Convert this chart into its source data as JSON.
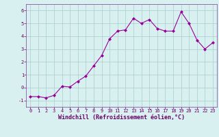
{
  "x": [
    0,
    1,
    2,
    3,
    4,
    5,
    6,
    7,
    8,
    9,
    10,
    11,
    12,
    13,
    14,
    15,
    16,
    17,
    18,
    19,
    20,
    21,
    22,
    23
  ],
  "y": [
    -0.7,
    -0.7,
    -0.8,
    -0.6,
    0.1,
    0.05,
    0.5,
    0.9,
    1.7,
    2.5,
    3.8,
    4.4,
    4.5,
    5.4,
    5.0,
    5.3,
    4.6,
    4.4,
    4.4,
    5.9,
    5.0,
    3.7,
    3.0,
    3.5
  ],
  "line_color": "#990099",
  "marker": "D",
  "markersize": 2.0,
  "linewidth": 0.8,
  "bg_color": "#d8f0f0",
  "grid_color": "#aacccc",
  "xlabel": "Windchill (Refroidissement éolien,°C)",
  "ylabel": "",
  "xlim": [
    -0.5,
    23.5
  ],
  "ylim": [
    -1.5,
    6.5
  ],
  "yticks": [
    -1,
    0,
    1,
    2,
    3,
    4,
    5,
    6
  ],
  "xticks": [
    0,
    1,
    2,
    3,
    4,
    5,
    6,
    7,
    8,
    9,
    10,
    11,
    12,
    13,
    14,
    15,
    16,
    17,
    18,
    19,
    20,
    21,
    22,
    23
  ],
  "tick_fontsize": 5.0,
  "xlabel_fontsize": 6.0,
  "label_color": "#660066",
  "spine_color": "#8855aa",
  "grid_linewidth": 0.5,
  "bottom_spine_color": "#660066"
}
